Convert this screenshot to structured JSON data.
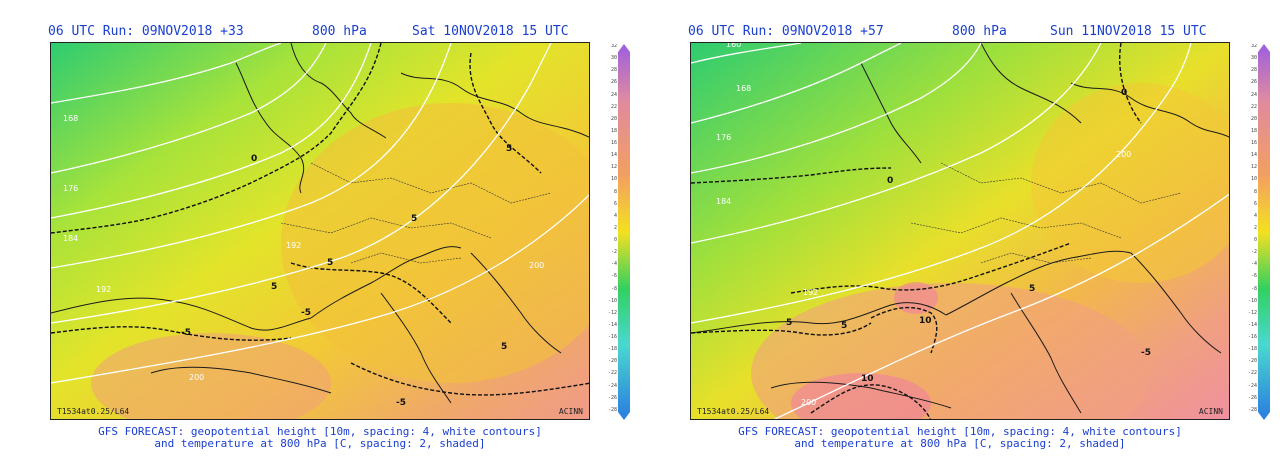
{
  "panels": [
    {
      "run": "06 UTC Run: 09NOV2018 +33",
      "level": "800 hPa",
      "valid": "Sat 10NOV2018 15 UTC",
      "height_labels": [
        "168",
        "176",
        "184",
        "192",
        "192",
        "200",
        "200"
      ],
      "temp_labels": [
        "0",
        "5",
        "5",
        "5",
        "5",
        "-5",
        "-5",
        "-5",
        "5"
      ],
      "model_tag": "T1534at0.25/L64",
      "credit": "ACINN"
    },
    {
      "run": "06 UTC Run: 09NOV2018 +57",
      "level": "800 hPa",
      "valid": "Sun 11NOV2018 15 UTC",
      "height_labels": [
        "160",
        "168",
        "176",
        "184",
        "192",
        "200",
        "200"
      ],
      "temp_labels": [
        "0",
        "0",
        "5",
        "5",
        "5",
        "10",
        "10",
        "-5"
      ],
      "model_tag": "T1534at0.25/L64",
      "credit": "ACINN"
    }
  ],
  "caption_line1": "GFS FORECAST: geopotential height [10m, spacing: 4, white contours]",
  "caption_line2": "and temperature at 800 hPa [C, spacing: 2, shaded]",
  "colorbar_labels": [
    "32",
    "30",
    "28",
    "26",
    "24",
    "22",
    "20",
    "18",
    "16",
    "14",
    "12",
    "10",
    "8",
    "6",
    "4",
    "2",
    "0",
    "-2",
    "-4",
    "-6",
    "-8",
    "-10",
    "-12",
    "-14",
    "-16",
    "-18",
    "-20",
    "-22",
    "-24",
    "-26",
    "-28"
  ],
  "colors": {
    "title_blue": "#1a3fd0",
    "cold": "#3cd67a",
    "mild": "#d9e830",
    "warm": "#f2c030",
    "hot": "#f0a080"
  }
}
